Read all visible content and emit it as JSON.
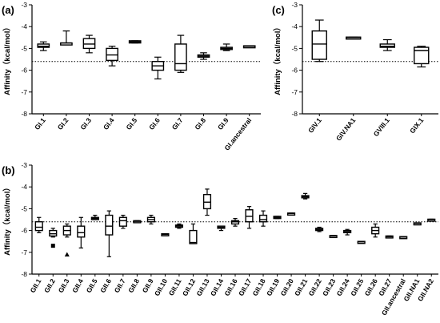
{
  "chart_data": [
    {
      "type": "box",
      "panel": "(a)",
      "ylabel": "Affinity（kcal/mol）",
      "ylim": [
        -8,
        -3
      ],
      "yticks": [
        -3,
        -4,
        -5,
        -6,
        -7,
        -8
      ],
      "reference_line": -5.6,
      "categories": [
        "GI.1",
        "GI.2",
        "GI.3",
        "GI.4",
        "GI.5",
        "GI.6",
        "GI.7",
        "GI.8",
        "GI.9",
        "GI.ancestral"
      ],
      "boxes": [
        {
          "min": -5.1,
          "q1": -4.95,
          "median": -4.9,
          "q3": -4.8,
          "max": -4.7
        },
        {
          "min": -4.8,
          "q1": -4.8,
          "median": -4.75,
          "q3": -4.75,
          "max": -4.2
        },
        {
          "min": -5.2,
          "q1": -5.0,
          "median": -4.8,
          "q3": -4.55,
          "max": -4.4
        },
        {
          "min": -5.8,
          "q1": -5.55,
          "median": -5.3,
          "q3": -5.0,
          "max": -4.9
        },
        {
          "min": -4.75,
          "q1": -4.75,
          "median": -4.7,
          "q3": -4.65,
          "max": -4.65
        },
        {
          "min": -6.4,
          "q1": -6.0,
          "median": -5.8,
          "q3": -5.6,
          "max": -5.4
        },
        {
          "min": -6.1,
          "q1": -6.0,
          "median": -5.7,
          "q3": -4.8,
          "max": -4.4
        },
        {
          "min": -5.5,
          "q1": -5.4,
          "median": -5.35,
          "q3": -5.3,
          "max": -5.2
        },
        {
          "min": -5.1,
          "q1": -5.05,
          "median": -5.0,
          "q3": -4.95,
          "max": -4.8
        },
        {
          "min": -4.92,
          "q1": -4.92,
          "median": -4.9,
          "q3": -4.88,
          "max": -4.88
        }
      ]
    },
    {
      "type": "box",
      "panel": "(c)",
      "ylabel": "Affinity（kcal/mol）",
      "ylim": [
        -8,
        -3
      ],
      "yticks": [
        -3,
        -4,
        -5,
        -6,
        -7,
        -8
      ],
      "reference_line": -5.6,
      "categories": [
        "GIV.1",
        "GIV.NA1",
        "GVIII.1",
        "GIX.1"
      ],
      "boxes": [
        {
          "min": -5.6,
          "q1": -5.5,
          "median": -4.8,
          "q3": -4.2,
          "max": -3.7
        },
        {
          "min": -4.52,
          "q1": -4.52,
          "median": -4.5,
          "q3": -4.48,
          "max": -4.48
        },
        {
          "min": -5.1,
          "q1": -4.95,
          "median": -4.9,
          "q3": -4.8,
          "max": -4.6
        },
        {
          "min": -5.85,
          "q1": -5.7,
          "median": -5.1,
          "q3": -4.95,
          "max": -4.9
        }
      ]
    },
    {
      "type": "box",
      "panel": "(b)",
      "ylabel": "Affinity（kcal/mol）",
      "ylim": [
        -8,
        -3
      ],
      "yticks": [
        -3,
        -4,
        -5,
        -6,
        -7,
        -8
      ],
      "reference_line": -5.6,
      "categories": [
        "GII.1",
        "GII.2",
        "GII.3",
        "GII.4",
        "GII.5",
        "GII.6",
        "GII.7",
        "GII.8",
        "GII.9",
        "GII.10",
        "GII.11",
        "GII.12",
        "GII.13",
        "GII.14",
        "GII.16",
        "GII.17",
        "GII.18",
        "GII.19",
        "GII.20",
        "GII.21",
        "GII.22",
        "GII.23",
        "GII.24",
        "GII.25",
        "GII.26",
        "GII.27",
        "GII.ancestral",
        "GII.NA1",
        "GII.NA2"
      ],
      "boxes": [
        {
          "min": -6.1,
          "q1": -6.0,
          "median": -5.85,
          "q3": -5.6,
          "max": -5.4
        },
        {
          "min": -6.3,
          "q1": -6.25,
          "median": -6.15,
          "q3": -6.0,
          "max": -5.9,
          "outlier": -6.7
        },
        {
          "min": -6.3,
          "q1": -6.2,
          "median": -6.0,
          "q3": -5.8,
          "max": -5.7,
          "outlier": -7.1
        },
        {
          "min": -6.8,
          "q1": -6.3,
          "median": -6.1,
          "q3": -5.8,
          "max": -5.4
        },
        {
          "min": -5.5,
          "q1": -5.5,
          "median": -5.45,
          "q3": -5.4,
          "max": -5.3
        },
        {
          "min": -7.2,
          "q1": -6.2,
          "median": -5.8,
          "q3": -5.3,
          "max": -5.1
        },
        {
          "min": -5.9,
          "q1": -5.8,
          "median": -5.55,
          "q3": -5.4,
          "max": -5.3
        },
        {
          "min": -5.6,
          "q1": -5.6,
          "median": -5.58,
          "q3": -5.55,
          "max": -5.55
        },
        {
          "min": -5.7,
          "q1": -5.6,
          "median": -5.5,
          "q3": -5.4,
          "max": -5.3
        },
        {
          "min": -6.2,
          "q1": -6.2,
          "median": -6.18,
          "q3": -6.15,
          "max": -6.15
        },
        {
          "min": -5.9,
          "q1": -5.85,
          "median": -5.8,
          "q3": -5.75,
          "max": -5.7
        },
        {
          "min": -6.6,
          "q1": -6.6,
          "median": -6.55,
          "q3": -6.0,
          "max": -5.7
        },
        {
          "min": -5.3,
          "q1": -5.0,
          "median": -4.7,
          "q3": -4.35,
          "max": -4.1
        },
        {
          "min": -6.0,
          "q1": -5.9,
          "median": -5.85,
          "q3": -5.8,
          "max": -5.8
        },
        {
          "min": -5.8,
          "q1": -5.7,
          "median": -5.6,
          "q3": -5.55,
          "max": -5.45
        },
        {
          "min": -5.9,
          "q1": -5.6,
          "median": -5.35,
          "q3": -5.05,
          "max": -4.9
        },
        {
          "min": -5.8,
          "q1": -5.6,
          "median": -5.5,
          "q3": -5.3,
          "max": -5.1
        },
        {
          "min": -5.45,
          "q1": -5.45,
          "median": -5.4,
          "q3": -5.35,
          "max": -5.35
        },
        {
          "min": -5.25,
          "q1": -5.25,
          "median": -5.22,
          "q3": -5.2,
          "max": -5.2
        },
        {
          "min": -4.55,
          "q1": -4.5,
          "median": -4.45,
          "q3": -4.4,
          "max": -4.3
        },
        {
          "min": -6.05,
          "q1": -6.0,
          "median": -5.95,
          "q3": -5.9,
          "max": -5.85
        },
        {
          "min": -6.27,
          "q1": -6.27,
          "median": -6.25,
          "q3": -6.23,
          "max": -6.23
        },
        {
          "min": -6.2,
          "q1": -6.1,
          "median": -6.05,
          "q3": -6.0,
          "max": -5.95
        },
        {
          "min": -6.55,
          "q1": -6.55,
          "median": -6.52,
          "q3": -6.5,
          "max": -6.5
        },
        {
          "min": -6.3,
          "q1": -6.15,
          "median": -6.0,
          "q3": -5.85,
          "max": -5.7
        },
        {
          "min": -6.3,
          "q1": -6.3,
          "median": -6.28,
          "q3": -6.25,
          "max": -6.25
        },
        {
          "min": -6.32,
          "q1": -6.32,
          "median": -6.3,
          "q3": -6.28,
          "max": -6.28
        },
        {
          "min": -5.7,
          "q1": -5.7,
          "median": -5.67,
          "q3": -5.65,
          "max": -5.65
        },
        {
          "min": -5.52,
          "q1": -5.52,
          "median": -5.5,
          "q3": -5.48,
          "max": -5.48
        }
      ]
    }
  ]
}
